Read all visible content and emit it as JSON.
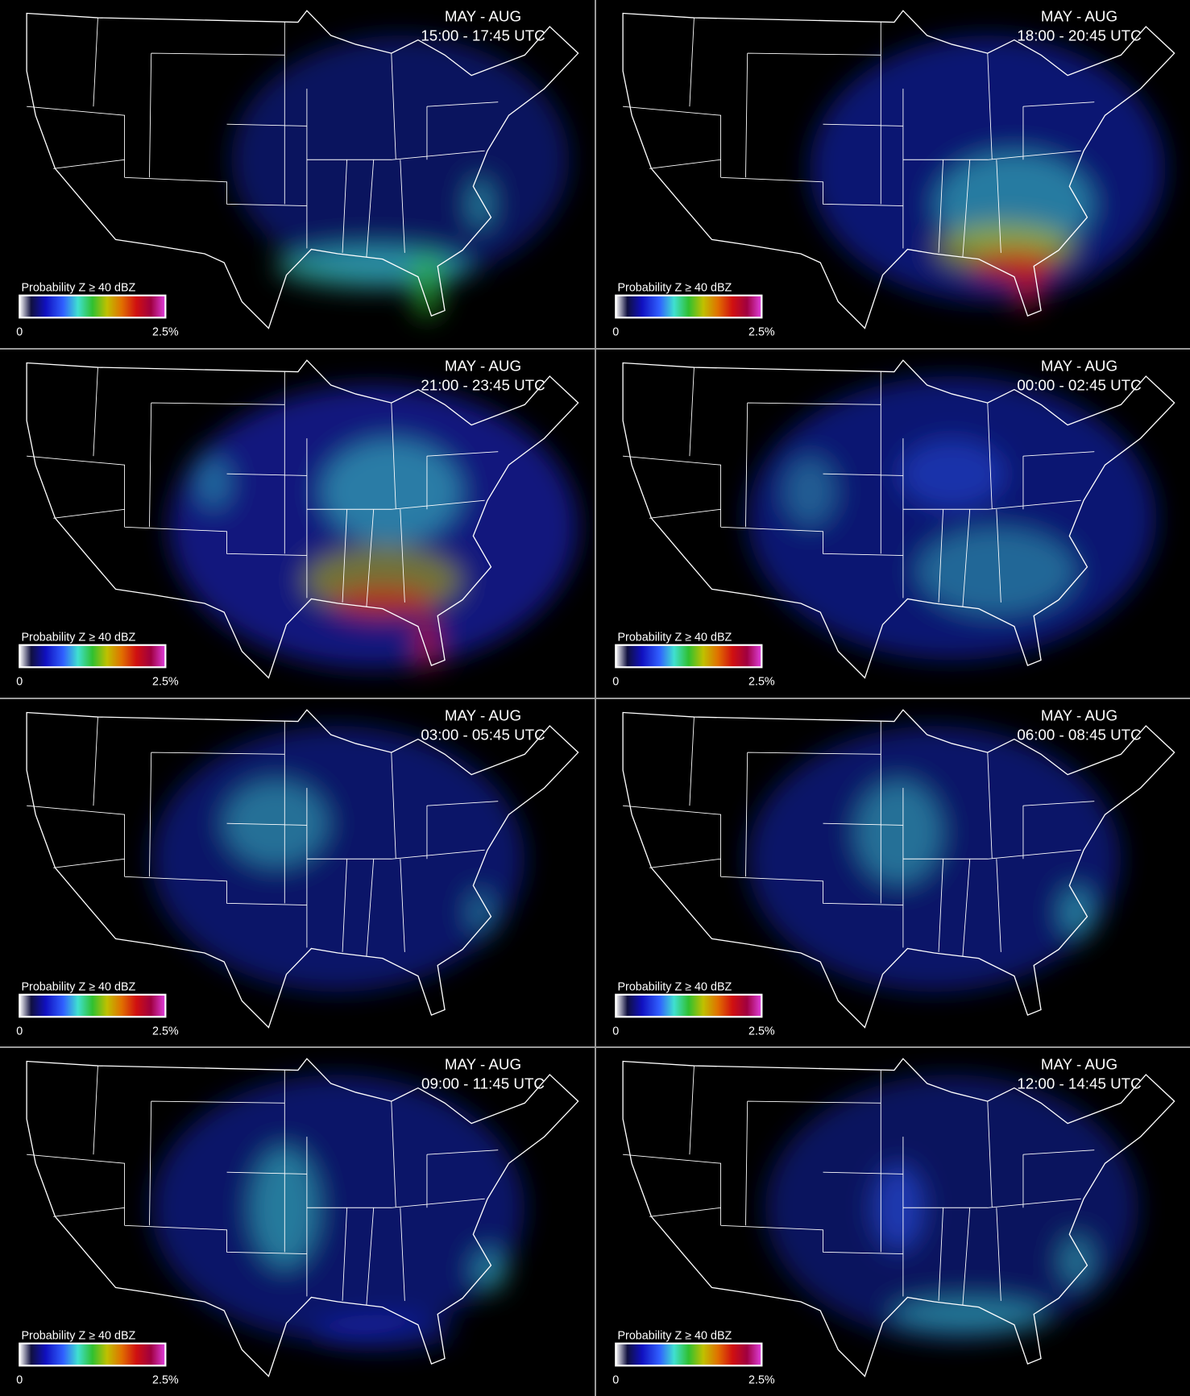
{
  "panels": [
    {
      "season": "MAY - AUG",
      "time": "15:00 - 17:45 UTC",
      "legend": {
        "title": "Probability Z ≥ 40 dBZ",
        "min": "0",
        "max": "2.5%"
      }
    },
    {
      "season": "MAY - AUG",
      "time": "18:00 - 20:45 UTC",
      "legend": {
        "title": "Probability Z ≥ 40 dBZ",
        "min": "0",
        "max": "2.5%"
      }
    },
    {
      "season": "MAY - AUG",
      "time": "21:00 - 23:45 UTC",
      "legend": {
        "title": "Probability Z ≥ 40 dBZ",
        "min": "0",
        "max": "2.5%"
      }
    },
    {
      "season": "MAY - AUG",
      "time": "00:00 - 02:45 UTC",
      "legend": {
        "title": "Probability Z ≥ 40 dBZ",
        "min": "0",
        "max": "2.5%"
      }
    },
    {
      "season": "MAY - AUG",
      "time": "03:00 - 05:45 UTC",
      "legend": {
        "title": "Probability Z ≥ 40 dBZ",
        "min": "0",
        "max": "2.5%"
      }
    },
    {
      "season": "MAY - AUG",
      "time": "06:00 - 08:45 UTC",
      "legend": {
        "title": "Probability Z ≥ 40 dBZ",
        "min": "0",
        "max": "2.5%"
      }
    },
    {
      "season": "MAY - AUG",
      "time": "09:00 - 11:45 UTC",
      "legend": {
        "title": "Probability Z ≥ 40 dBZ",
        "min": "0",
        "max": "2.5%"
      }
    },
    {
      "season": "MAY - AUG",
      "time": "12:00 - 14:45 UTC",
      "legend": {
        "title": "Probability Z ≥ 40 dBZ",
        "min": "0",
        "max": "2.5%"
      }
    }
  ]
}
